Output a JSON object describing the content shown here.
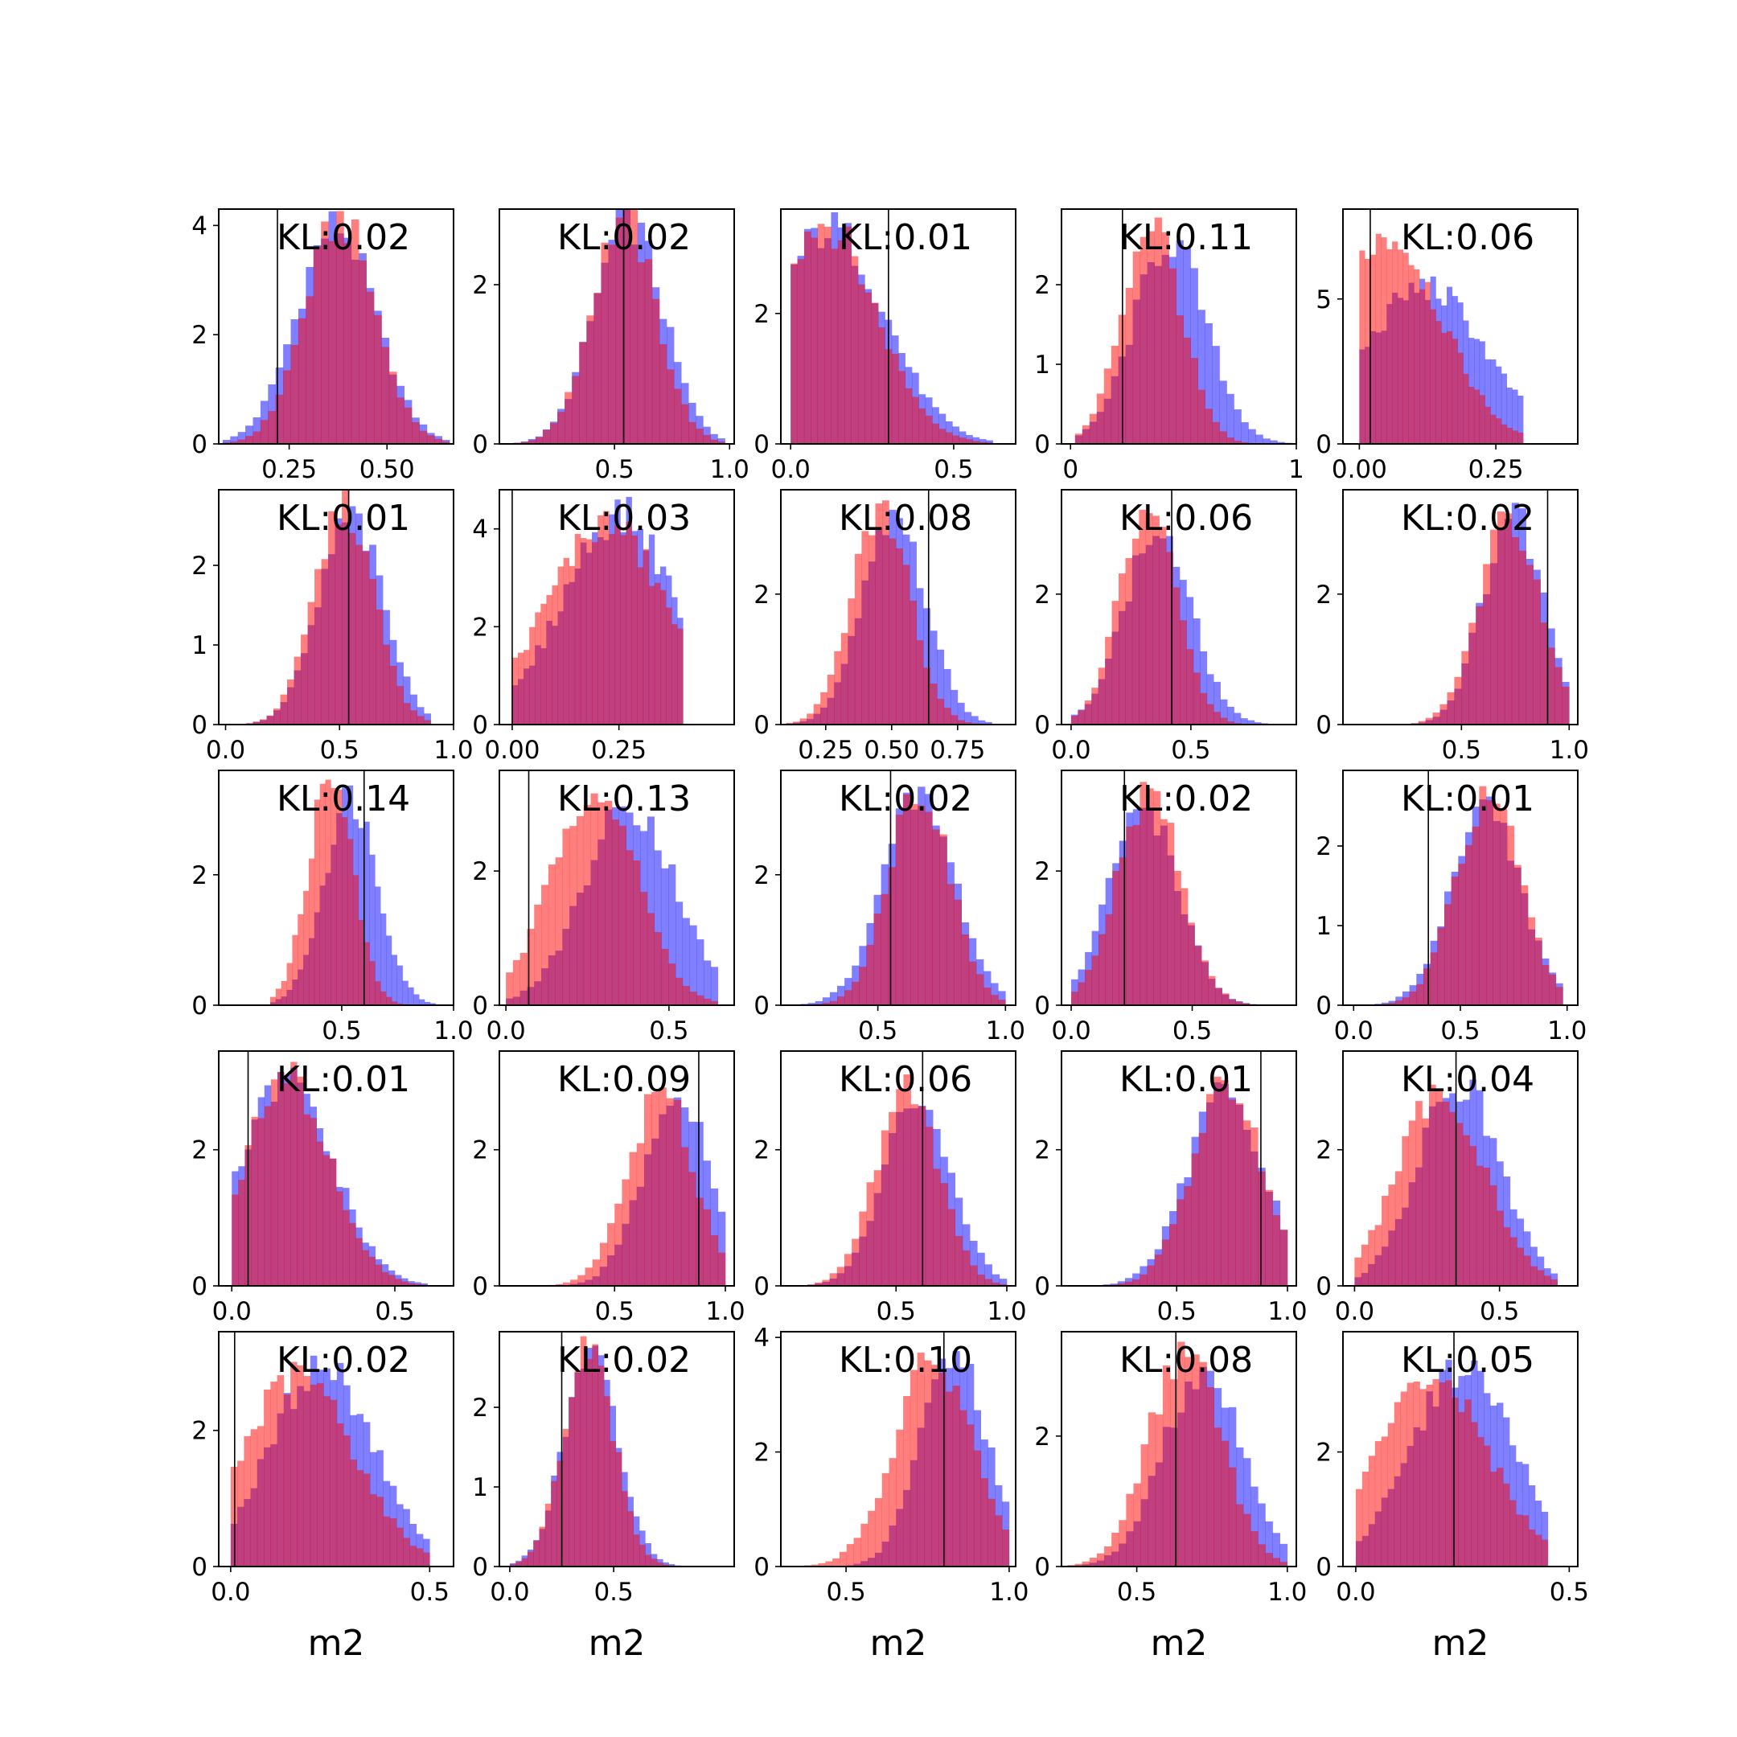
{
  "figure": {
    "background": "#ffffff",
    "blue_color": "#0000ff",
    "red_color": "#ff0000",
    "bar_alpha": 0.5,
    "ref_line_color": "#000000"
  },
  "chart_data": [
    {
      "type": "bar",
      "annotation": "KL:0.02",
      "xlim": [
        0.07,
        0.67
      ],
      "ylim": [
        0,
        4.3
      ],
      "xticks": [
        0.25,
        0.5
      ],
      "xtick_labels": [
        "0.25",
        "0.50"
      ],
      "yticks": [
        0,
        2,
        4
      ],
      "ytick_labels": [
        "0",
        "2",
        "4"
      ],
      "vline": 0.22,
      "xlabel": "",
      "blue": {
        "mu": 0.37,
        "sd": 0.1,
        "peak": 4.0,
        "lo": 0.08,
        "hi": 0.66
      },
      "red": {
        "mu": 0.38,
        "sd": 0.09,
        "peak": 4.1,
        "lo": 0.08,
        "hi": 0.66
      }
    },
    {
      "type": "bar",
      "annotation": "KL:0.02",
      "xlim": [
        0.0,
        1.02
      ],
      "ylim": [
        0,
        2.95
      ],
      "xticks": [
        0.5,
        1.0
      ],
      "xtick_labels": [
        "0.5",
        "1.0"
      ],
      "yticks": [
        0,
        2
      ],
      "ytick_labels": [
        "0",
        "2"
      ],
      "vline": 0.54,
      "xlabel": "",
      "blue": {
        "mu": 0.56,
        "sd": 0.15,
        "peak": 2.8,
        "lo": 0.03,
        "hi": 0.98
      },
      "red": {
        "mu": 0.54,
        "sd": 0.14,
        "peak": 2.85,
        "lo": 0.03,
        "hi": 0.98
      }
    },
    {
      "type": "bar",
      "annotation": "KL:0.01",
      "xlim": [
        -0.03,
        0.69
      ],
      "ylim": [
        0,
        3.6
      ],
      "xticks": [
        0.0,
        0.5
      ],
      "xtick_labels": [
        "0.0",
        "0.5"
      ],
      "yticks": [
        0,
        2
      ],
      "ytick_labels": [
        "0",
        "2"
      ],
      "vline": 0.3,
      "xlabel": "",
      "blue": {
        "mu": 0.12,
        "sd": 0.17,
        "peak": 3.3,
        "lo": 0.0,
        "hi": 0.62
      },
      "red": {
        "mu": 0.1,
        "sd": 0.16,
        "peak": 3.4,
        "lo": 0.0,
        "hi": 0.62
      }
    },
    {
      "type": "bar",
      "annotation": "KL:0.11",
      "xlim": [
        -0.04,
        1.0
      ],
      "ylim": [
        0,
        2.95
      ],
      "xticks": [
        0.0,
        1.0
      ],
      "xtick_labels": [
        "0",
        "1"
      ],
      "yticks": [
        0,
        1,
        2
      ],
      "ytick_labels": [
        "0",
        "1",
        "2"
      ],
      "vline": 0.23,
      "xlabel": "",
      "blue": {
        "mu": 0.44,
        "sd": 0.16,
        "peak": 2.55,
        "lo": 0.02,
        "hi": 0.98
      },
      "red": {
        "mu": 0.36,
        "sd": 0.13,
        "peak": 2.8,
        "lo": 0.02,
        "hi": 0.98
      }
    },
    {
      "type": "bar",
      "annotation": "KL:0.06",
      "xlim": [
        -0.03,
        0.4
      ],
      "ylim": [
        0,
        8.1
      ],
      "xticks": [
        0.0,
        0.25
      ],
      "xtick_labels": [
        "0.00",
        "0.25"
      ],
      "yticks": [
        0,
        5
      ],
      "ytick_labels": [
        "0",
        "5"
      ],
      "vline": 0.02,
      "xlabel": "",
      "blue": {
        "mu": 0.12,
        "sd": 0.11,
        "peak": 5.4,
        "lo": 0.0,
        "hi": 0.3
      },
      "red": {
        "mu": 0.05,
        "sd": 0.1,
        "peak": 7.2,
        "lo": 0.0,
        "hi": 0.3
      }
    },
    {
      "type": "bar",
      "annotation": "KL:0.01",
      "xlim": [
        -0.03,
        1.0
      ],
      "ylim": [
        0,
        2.95
      ],
      "xticks": [
        0.0,
        0.5,
        1.0
      ],
      "xtick_labels": [
        "0.0",
        "0.5",
        "1.0"
      ],
      "yticks": [
        0,
        1,
        2
      ],
      "ytick_labels": [
        "0",
        "1",
        "2"
      ],
      "vline": 0.54,
      "xlabel": "",
      "blue": {
        "mu": 0.55,
        "sd": 0.14,
        "peak": 2.6,
        "lo": 0.0,
        "hi": 0.9
      },
      "red": {
        "mu": 0.52,
        "sd": 0.13,
        "peak": 2.75,
        "lo": 0.0,
        "hi": 0.9
      }
    },
    {
      "type": "bar",
      "annotation": "KL:0.03",
      "xlim": [
        -0.03,
        0.52
      ],
      "ylim": [
        0,
        4.8
      ],
      "xticks": [
        0.0,
        0.25
      ],
      "xtick_labels": [
        "0.00",
        "0.25"
      ],
      "yticks": [
        0,
        2,
        4
      ],
      "ytick_labels": [
        "0",
        "2",
        "4"
      ],
      "vline": 0.0,
      "xlabel": "",
      "blue": {
        "mu": 0.25,
        "sd": 0.13,
        "peak": 4.3,
        "lo": 0.0,
        "hi": 0.4
      },
      "red": {
        "mu": 0.22,
        "sd": 0.14,
        "peak": 4.1,
        "lo": 0.0,
        "hi": 0.4
      }
    },
    {
      "type": "bar",
      "annotation": "KL:0.08",
      "xlim": [
        0.08,
        0.97
      ],
      "ylim": [
        0,
        3.6
      ],
      "xticks": [
        0.25,
        0.5,
        0.75
      ],
      "xtick_labels": [
        "0.25",
        "0.50",
        "0.75"
      ],
      "yticks": [
        0,
        2
      ],
      "ytick_labels": [
        "0",
        "2"
      ],
      "vline": 0.64,
      "xlabel": "",
      "blue": {
        "mu": 0.51,
        "sd": 0.12,
        "peak": 3.15,
        "lo": 0.1,
        "hi": 0.88
      },
      "red": {
        "mu": 0.46,
        "sd": 0.11,
        "peak": 3.3,
        "lo": 0.1,
        "hi": 0.88
      }
    },
    {
      "type": "bar",
      "annotation": "KL:0.06",
      "xlim": [
        -0.04,
        0.94
      ],
      "ylim": [
        0,
        3.6
      ],
      "xticks": [
        0.0,
        0.5
      ],
      "xtick_labels": [
        "0.0",
        "0.5"
      ],
      "yticks": [
        0,
        2
      ],
      "ytick_labels": [
        "0",
        "2"
      ],
      "vline": 0.42,
      "xlabel": "",
      "blue": {
        "mu": 0.36,
        "sd": 0.14,
        "peak": 2.95,
        "lo": 0.0,
        "hi": 0.85
      },
      "red": {
        "mu": 0.32,
        "sd": 0.12,
        "peak": 3.3,
        "lo": 0.0,
        "hi": 0.85
      }
    },
    {
      "type": "bar",
      "annotation": "KL:0.02",
      "xlim": [
        -0.05,
        1.04
      ],
      "ylim": [
        0,
        3.6
      ],
      "xticks": [
        0.5,
        1.0
      ],
      "xtick_labels": [
        "0.5",
        "1.0"
      ],
      "yticks": [
        0,
        2
      ],
      "ytick_labels": [
        "0",
        "2"
      ],
      "vline": 0.9,
      "xlabel": "",
      "blue": {
        "mu": 0.74,
        "sd": 0.14,
        "peak": 3.25,
        "lo": 0.0,
        "hi": 1.0
      },
      "red": {
        "mu": 0.72,
        "sd": 0.14,
        "peak": 3.15,
        "lo": 0.0,
        "hi": 1.0
      }
    },
    {
      "type": "bar",
      "annotation": "KL:0.14",
      "xlim": [
        -0.05,
        1.0
      ],
      "ylim": [
        0,
        3.6
      ],
      "xticks": [
        0.5,
        1.0
      ],
      "xtick_labels": [
        "0.5",
        "1.0"
      ],
      "yticks": [
        0,
        2
      ],
      "ytick_labels": [
        "0",
        "2"
      ],
      "vline": 0.6,
      "xlabel": "",
      "blue": {
        "mu": 0.54,
        "sd": 0.12,
        "peak": 3.2,
        "lo": 0.18,
        "hi": 0.92
      },
      "red": {
        "mu": 0.45,
        "sd": 0.1,
        "peak": 3.5,
        "lo": 0.18,
        "hi": 0.92
      }
    },
    {
      "type": "bar",
      "annotation": "KL:0.13",
      "xlim": [
        -0.02,
        0.7
      ],
      "ylim": [
        0,
        3.5
      ],
      "xticks": [
        0.0,
        0.5
      ],
      "xtick_labels": [
        "0.0",
        "0.5"
      ],
      "yticks": [
        0,
        2
      ],
      "ytick_labels": [
        "0",
        "2"
      ],
      "vline": 0.07,
      "xlabel": "",
      "blue": {
        "mu": 0.38,
        "sd": 0.14,
        "peak": 3.0,
        "lo": 0.0,
        "hi": 0.65
      },
      "red": {
        "mu": 0.27,
        "sd": 0.13,
        "peak": 3.3,
        "lo": 0.0,
        "hi": 0.65
      }
    },
    {
      "type": "bar",
      "annotation": "KL:0.02",
      "xlim": [
        0.12,
        1.04
      ],
      "ylim": [
        0,
        3.6
      ],
      "xticks": [
        0.5,
        1.0
      ],
      "xtick_labels": [
        "0.5",
        "1.0"
      ],
      "yticks": [
        0,
        2
      ],
      "ytick_labels": [
        "0",
        "2"
      ],
      "vline": 0.55,
      "xlabel": "",
      "blue": {
        "mu": 0.66,
        "sd": 0.14,
        "peak": 3.2,
        "lo": 0.14,
        "hi": 1.0
      },
      "red": {
        "mu": 0.66,
        "sd": 0.12,
        "peak": 3.35,
        "lo": 0.14,
        "hi": 1.0
      }
    },
    {
      "type": "bar",
      "annotation": "KL:0.02",
      "xlim": [
        -0.04,
        0.93
      ],
      "ylim": [
        0,
        3.5
      ],
      "xticks": [
        0.0,
        0.5
      ],
      "xtick_labels": [
        "0.0",
        "0.5"
      ],
      "yticks": [
        0,
        2
      ],
      "ytick_labels": [
        "0",
        "2"
      ],
      "vline": 0.22,
      "xlabel": "",
      "blue": {
        "mu": 0.3,
        "sd": 0.14,
        "peak": 3.0,
        "lo": 0.0,
        "hi": 0.85
      },
      "red": {
        "mu": 0.32,
        "sd": 0.13,
        "peak": 3.2,
        "lo": 0.0,
        "hi": 0.85
      }
    },
    {
      "type": "bar",
      "annotation": "KL:0.01",
      "xlim": [
        -0.05,
        1.05
      ],
      "ylim": [
        0,
        2.95
      ],
      "xticks": [
        0.0,
        0.5,
        1.0
      ],
      "xtick_labels": [
        "0.0",
        "0.5",
        "1.0"
      ],
      "yticks": [
        0,
        1,
        2
      ],
      "ytick_labels": [
        "0",
        "1",
        "2"
      ],
      "vline": 0.35,
      "xlabel": "",
      "blue": {
        "mu": 0.62,
        "sd": 0.16,
        "peak": 2.55,
        "lo": 0.0,
        "hi": 0.98
      },
      "red": {
        "mu": 0.63,
        "sd": 0.15,
        "peak": 2.65,
        "lo": 0.0,
        "hi": 0.98
      }
    },
    {
      "type": "bar",
      "annotation": "KL:0.01",
      "xlim": [
        -0.04,
        0.68
      ],
      "ylim": [
        0,
        3.45
      ],
      "xticks": [
        0.0,
        0.5
      ],
      "xtick_labels": [
        "0.0",
        "0.5"
      ],
      "yticks": [
        0,
        2
      ],
      "ytick_labels": [
        "0",
        "2"
      ],
      "vline": 0.05,
      "xlabel": "",
      "blue": {
        "mu": 0.17,
        "sd": 0.14,
        "peak": 3.0,
        "lo": 0.0,
        "hi": 0.6
      },
      "red": {
        "mu": 0.17,
        "sd": 0.13,
        "peak": 3.05,
        "lo": 0.0,
        "hi": 0.6
      }
    },
    {
      "type": "bar",
      "annotation": "KL:0.09",
      "xlim": [
        -0.02,
        1.04
      ],
      "ylim": [
        0,
        3.45
      ],
      "xticks": [
        0.5,
        1.0
      ],
      "xtick_labels": [
        "0.5",
        "1.0"
      ],
      "yticks": [
        0,
        2
      ],
      "ytick_labels": [
        "0",
        "2"
      ],
      "vline": 0.88,
      "xlabel": "",
      "blue": {
        "mu": 0.78,
        "sd": 0.15,
        "peak": 2.9,
        "lo": 0.0,
        "hi": 1.0
      },
      "red": {
        "mu": 0.71,
        "sd": 0.15,
        "peak": 2.8,
        "lo": 0.0,
        "hi": 1.0
      }
    },
    {
      "type": "bar",
      "annotation": "KL:0.06",
      "xlim": [
        -0.02,
        1.04
      ],
      "ylim": [
        0,
        3.45
      ],
      "xticks": [
        0.5,
        1.0
      ],
      "xtick_labels": [
        "0.5",
        "1.0"
      ],
      "yticks": [
        0,
        2
      ],
      "ytick_labels": [
        "0",
        "2"
      ],
      "vline": 0.62,
      "xlabel": "",
      "blue": {
        "mu": 0.6,
        "sd": 0.15,
        "peak": 2.8,
        "lo": 0.0,
        "hi": 1.0
      },
      "red": {
        "mu": 0.55,
        "sd": 0.14,
        "peak": 2.95,
        "lo": 0.0,
        "hi": 1.0
      }
    },
    {
      "type": "bar",
      "annotation": "KL:0.01",
      "xlim": [
        -0.02,
        1.04
      ],
      "ylim": [
        0,
        3.45
      ],
      "xticks": [
        0.5,
        1.0
      ],
      "xtick_labels": [
        "0.5",
        "1.0"
      ],
      "yticks": [
        0,
        2
      ],
      "ytick_labels": [
        "0",
        "2"
      ],
      "vline": 0.88,
      "xlabel": "",
      "blue": {
        "mu": 0.72,
        "sd": 0.17,
        "peak": 2.85,
        "lo": 0.0,
        "hi": 1.0
      },
      "red": {
        "mu": 0.73,
        "sd": 0.16,
        "peak": 2.95,
        "lo": 0.0,
        "hi": 1.0
      }
    },
    {
      "type": "bar",
      "annotation": "KL:0.04",
      "xlim": [
        -0.04,
        0.77
      ],
      "ylim": [
        0,
        3.45
      ],
      "xticks": [
        0.0,
        0.5
      ],
      "xtick_labels": [
        "0.0",
        "0.5"
      ],
      "yticks": [
        0,
        2
      ],
      "ytick_labels": [
        "0",
        "2"
      ],
      "vline": 0.35,
      "xlabel": "",
      "blue": {
        "mu": 0.36,
        "sd": 0.14,
        "peak": 3.0,
        "lo": 0.0,
        "hi": 0.7
      },
      "red": {
        "mu": 0.3,
        "sd": 0.15,
        "peak": 2.85,
        "lo": 0.0,
        "hi": 0.7
      }
    },
    {
      "type": "bar",
      "annotation": "KL:0.02",
      "xlim": [
        -0.03,
        0.56
      ],
      "ylim": [
        0,
        3.45
      ],
      "xticks": [
        0.0,
        0.5
      ],
      "xtick_labels": [
        "0.0",
        "0.5"
      ],
      "yticks": [
        0,
        2
      ],
      "ytick_labels": [
        "0",
        "2"
      ],
      "vline": 0.01,
      "xlabel": "m2",
      "blue": {
        "mu": 0.23,
        "sd": 0.13,
        "peak": 2.95,
        "lo": 0.0,
        "hi": 0.5
      },
      "red": {
        "mu": 0.17,
        "sd": 0.14,
        "peak": 2.8,
        "lo": 0.0,
        "hi": 0.5
      }
    },
    {
      "type": "bar",
      "annotation": "KL:0.02",
      "xlim": [
        -0.05,
        1.08
      ],
      "ylim": [
        0,
        2.95
      ],
      "xticks": [
        0.0,
        0.5
      ],
      "xtick_labels": [
        "0.0",
        "0.5"
      ],
      "yticks": [
        0,
        1,
        2
      ],
      "ytick_labels": [
        "0",
        "1",
        "2"
      ],
      "vline": 0.25,
      "xlabel": "m2",
      "blue": {
        "mu": 0.39,
        "sd": 0.13,
        "peak": 2.65,
        "lo": 0.0,
        "hi": 0.85
      },
      "red": {
        "mu": 0.38,
        "sd": 0.12,
        "peak": 2.75,
        "lo": 0.0,
        "hi": 0.85
      }
    },
    {
      "type": "bar",
      "annotation": "KL:0.10",
      "xlim": [
        0.3,
        1.02
      ],
      "ylim": [
        0,
        4.1
      ],
      "xticks": [
        0.5,
        1.0
      ],
      "xtick_labels": [
        "0.5",
        "1.0"
      ],
      "yticks": [
        0,
        2,
        4
      ],
      "ytick_labels": [
        "0",
        "2",
        "4"
      ],
      "vline": 0.8,
      "xlabel": "m2",
      "blue": {
        "mu": 0.83,
        "sd": 0.1,
        "peak": 3.8,
        "lo": 0.35,
        "hi": 1.0
      },
      "red": {
        "mu": 0.77,
        "sd": 0.12,
        "peak": 3.6,
        "lo": 0.35,
        "hi": 1.0
      }
    },
    {
      "type": "bar",
      "annotation": "KL:0.08",
      "xlim": [
        0.25,
        1.03
      ],
      "ylim": [
        0,
        3.6
      ],
      "xticks": [
        0.5,
        1.0
      ],
      "xtick_labels": [
        "0.5",
        "1.0"
      ],
      "yticks": [
        0,
        2
      ],
      "ytick_labels": [
        "0",
        "2"
      ],
      "vline": 0.63,
      "xlabel": "m2",
      "blue": {
        "mu": 0.72,
        "sd": 0.13,
        "peak": 3.05,
        "lo": 0.27,
        "hi": 1.0
      },
      "red": {
        "mu": 0.66,
        "sd": 0.12,
        "peak": 3.3,
        "lo": 0.27,
        "hi": 1.0
      }
    },
    {
      "type": "bar",
      "annotation": "KL:0.05",
      "xlim": [
        -0.03,
        0.52
      ],
      "ylim": [
        0,
        4.1
      ],
      "xticks": [
        0.0,
        0.5
      ],
      "xtick_labels": [
        "0.0",
        "0.5"
      ],
      "yticks": [
        0,
        2
      ],
      "ytick_labels": [
        "0",
        "2"
      ],
      "vline": 0.23,
      "xlabel": "m2",
      "blue": {
        "mu": 0.25,
        "sd": 0.12,
        "peak": 3.5,
        "lo": 0.0,
        "hi": 0.45
      },
      "red": {
        "mu": 0.18,
        "sd": 0.13,
        "peak": 3.3,
        "lo": 0.0,
        "hi": 0.45
      }
    }
  ]
}
